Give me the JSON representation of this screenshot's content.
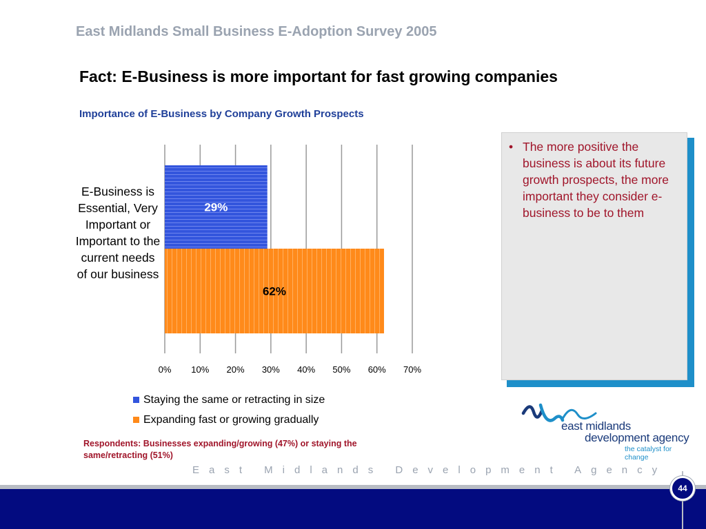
{
  "header": {
    "survey_title": "East Midlands Small Business E-Adoption Survey 2005",
    "slide_title": "Fact: E-Business is more important for fast growing companies"
  },
  "chart_data": {
    "type": "bar",
    "orientation": "horizontal",
    "title": "Importance of E-Business by Company Growth Prospects",
    "categories": [
      "E-Business is Essential, Very Important or Important to the current needs of our business"
    ],
    "series": [
      {
        "name": "Staying the same or retracting in size",
        "values": [
          29
        ],
        "label": "29%",
        "color": "#3355dd"
      },
      {
        "name": "Expanding fast or growing gradually",
        "values": [
          62
        ],
        "label": "62%",
        "color": "#ff8a1a"
      }
    ],
    "x_ticks": [
      "0%",
      "10%",
      "20%",
      "30%",
      "40%",
      "50%",
      "60%",
      "70%"
    ],
    "xlim": [
      0,
      70
    ],
    "grid": true,
    "legend_position": "bottom"
  },
  "respondents_note": "Respondents: Businesses expanding/growing (47%) or staying the same/retracting (51%)",
  "note_box": {
    "bullet": "•",
    "text": "The more positive the business is about its future growth prospects, the more important they consider e-business to be to them"
  },
  "logo": {
    "name_line1": "east midlands",
    "name_line2": "development agency",
    "tagline": "the catalyst for change",
    "colors": {
      "wave_blue": "#1e8fc9",
      "navy": "#1a3a7a"
    }
  },
  "footer": {
    "agency_text": "East Midlands Development Agency",
    "page_number": "44",
    "band_color": "#030b80"
  }
}
